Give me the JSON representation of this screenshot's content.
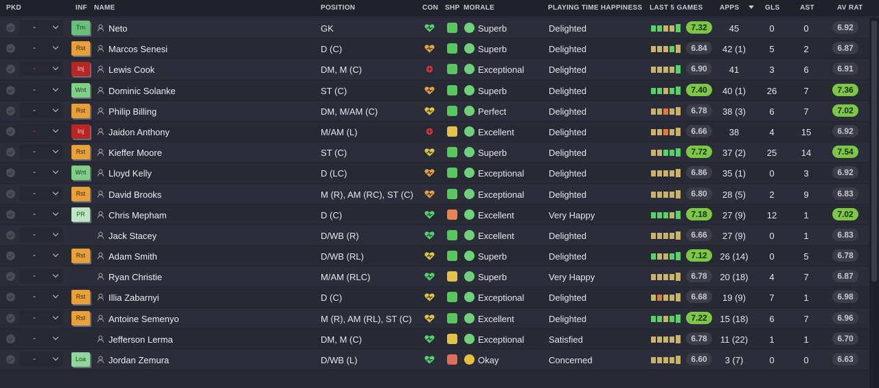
{
  "headers": {
    "pkd": "PKD",
    "inf": "INF",
    "name": "NAME",
    "position": "POSITION",
    "con": "CON",
    "shp": "SHP",
    "morale": "MORALE",
    "pth": "PLAYING TIME HAPPINESS",
    "last5": "LAST 5 GAMES",
    "apps": "APPS",
    "gls": "GLS",
    "ast": "AST",
    "avrat": "AV RAT"
  },
  "colors": {
    "rating_high": "#7cc744",
    "rating_low": "#3b3d49",
    "injury": "#b72525",
    "rest": "#e8a13a",
    "background": "#222430"
  },
  "players": [
    {
      "sel": "-",
      "inf": "Trn",
      "infType": "trn",
      "name": "Neto",
      "position": "GK",
      "con": "green",
      "shp": "green",
      "morIcon": "green",
      "morale": "Superb",
      "pth": "Delighted",
      "form": [
        "g",
        "g",
        "y",
        "y",
        "g"
      ],
      "last5": "7.32",
      "last5Hi": true,
      "apps": "45",
      "gls": "0",
      "ast": "0",
      "avr": "6.92",
      "avrHi": false
    },
    {
      "sel": "-",
      "inf": "Rst",
      "infType": "rst",
      "name": "Marcos Senesi",
      "position": "D (C)",
      "con": "orange",
      "shp": "green",
      "morIcon": "green",
      "morale": "Superb",
      "pth": "Delighted",
      "form": [
        "y",
        "y",
        "y",
        "g",
        "y"
      ],
      "last5": "6.84",
      "last5Hi": false,
      "apps": "42 (1)",
      "gls": "5",
      "ast": "2",
      "avr": "6.87",
      "avrHi": false
    },
    {
      "sel": "-",
      "selRed": true,
      "inf": "Inj",
      "infType": "inj",
      "name": "Lewis Cook",
      "position": "DM, M (C)",
      "con": "red",
      "shp": "green",
      "morIcon": "green",
      "morale": "Exceptional",
      "pth": "Delighted",
      "form": [
        "y",
        "y",
        "y",
        "y",
        "g"
      ],
      "last5": "6.90",
      "last5Hi": false,
      "apps": "41",
      "gls": "3",
      "ast": "6",
      "avr": "6.91",
      "avrHi": false
    },
    {
      "sel": "-",
      "inf": "Wnt",
      "infType": "wnt",
      "name": "Dominic Solanke",
      "position": "ST (C)",
      "con": "orange",
      "shp": "green",
      "morIcon": "green",
      "morale": "Superb",
      "pth": "Delighted",
      "form": [
        "g",
        "g",
        "y",
        "g",
        "g"
      ],
      "last5": "7.40",
      "last5Hi": true,
      "apps": "40 (1)",
      "gls": "26",
      "ast": "7",
      "avr": "7.36",
      "avrHi": true
    },
    {
      "sel": "-",
      "inf": "Rst",
      "infType": "rst",
      "name": "Philip Billing",
      "position": "DM, M/AM (C)",
      "con": "yellow",
      "shp": "green",
      "morIcon": "green",
      "morale": "Perfect",
      "pth": "Delighted",
      "form": [
        "y",
        "y",
        "o",
        "y",
        "y"
      ],
      "last5": "6.78",
      "last5Hi": false,
      "apps": "38 (3)",
      "gls": "6",
      "ast": "7",
      "avr": "7.02",
      "avrHi": true
    },
    {
      "sel": "-",
      "selRed": true,
      "inf": "Inj",
      "infType": "inj",
      "name": "Jaidon Anthony",
      "position": "M/AM (L)",
      "con": "red",
      "shp": "yellow",
      "morIcon": "green",
      "morale": "Excellent",
      "pth": "Delighted",
      "form": [
        "y",
        "y",
        "o",
        "y",
        "y"
      ],
      "last5": "6.66",
      "last5Hi": false,
      "apps": "38",
      "gls": "4",
      "ast": "15",
      "avr": "6.92",
      "avrHi": false
    },
    {
      "sel": "-",
      "inf": "Rst",
      "infType": "rst",
      "name": "Kieffer Moore",
      "position": "ST (C)",
      "con": "yellow",
      "shp": "green",
      "morIcon": "green",
      "morale": "Superb",
      "pth": "Delighted",
      "form": [
        "y",
        "y",
        "g",
        "g",
        "g"
      ],
      "last5": "7.72",
      "last5Hi": true,
      "apps": "37 (2)",
      "gls": "25",
      "ast": "14",
      "avr": "7.54",
      "avrHi": true
    },
    {
      "sel": "-",
      "inf": "Wnt",
      "infType": "wnt",
      "name": "Lloyd Kelly",
      "position": "D (LC)",
      "con": "orange",
      "shp": "green",
      "morIcon": "green",
      "morale": "Exceptional",
      "pth": "Delighted",
      "form": [
        "y",
        "y",
        "y",
        "y",
        "y"
      ],
      "last5": "6.86",
      "last5Hi": false,
      "apps": "35 (1)",
      "gls": "0",
      "ast": "3",
      "avr": "6.92",
      "avrHi": false
    },
    {
      "sel": "-",
      "inf": "Rst",
      "infType": "rst",
      "name": "David Brooks",
      "position": "M (R), AM (RC), ST (C)",
      "con": "orange",
      "shp": "green",
      "morIcon": "green",
      "morale": "Exceptional",
      "pth": "Delighted",
      "form": [
        "y",
        "y",
        "y",
        "y",
        "y"
      ],
      "last5": "6.80",
      "last5Hi": false,
      "apps": "28 (5)",
      "gls": "2",
      "ast": "9",
      "avr": "6.83",
      "avrHi": false
    },
    {
      "sel": "-",
      "inf": "PR",
      "infType": "pr",
      "name": "Chris Mepham",
      "position": "D (C)",
      "con": "green",
      "shp": "orange",
      "morIcon": "green",
      "morale": "Excellent",
      "pth": "Very Happy",
      "form": [
        "g",
        "g",
        "g",
        "y",
        "g"
      ],
      "last5": "7.18",
      "last5Hi": true,
      "apps": "27 (9)",
      "gls": "12",
      "ast": "1",
      "avr": "7.02",
      "avrHi": true
    },
    {
      "sel": "-",
      "inf": "",
      "infType": "",
      "name": "Jack Stacey",
      "position": "D/WB (R)",
      "con": "green",
      "shp": "green",
      "morIcon": "green",
      "morale": "Excellent",
      "pth": "Delighted",
      "form": [
        "y",
        "y",
        "y",
        "y",
        "y"
      ],
      "last5": "6.66",
      "last5Hi": false,
      "apps": "27 (9)",
      "gls": "0",
      "ast": "1",
      "avr": "6.83",
      "avrHi": false
    },
    {
      "sel": "-",
      "inf": "Rst",
      "infType": "rst",
      "name": "Adam Smith",
      "position": "D/WB (RL)",
      "con": "yellow",
      "shp": "green",
      "morIcon": "green",
      "morale": "Superb",
      "pth": "Delighted",
      "form": [
        "g",
        "y",
        "y",
        "g",
        "g"
      ],
      "last5": "7.12",
      "last5Hi": true,
      "apps": "26 (14)",
      "gls": "0",
      "ast": "5",
      "avr": "6.78",
      "avrHi": false
    },
    {
      "sel": "-",
      "inf": "",
      "infType": "",
      "name": "Ryan Christie",
      "position": "M/AM (RLC)",
      "con": "green",
      "shp": "yellow",
      "morIcon": "green",
      "morale": "Superb",
      "pth": "Very Happy",
      "form": [
        "y",
        "y",
        "y",
        "y",
        "y"
      ],
      "last5": "6.78",
      "last5Hi": false,
      "apps": "20 (18)",
      "gls": "4",
      "ast": "7",
      "avr": "6.87",
      "avrHi": false
    },
    {
      "sel": "-",
      "inf": "Rst",
      "infType": "rst",
      "name": "Illia Zabarnyi",
      "position": "D (C)",
      "con": "yellow",
      "shp": "green",
      "morIcon": "green",
      "morale": "Exceptional",
      "pth": "Delighted",
      "form": [
        "y",
        "o",
        "y",
        "y",
        "y"
      ],
      "last5": "6.68",
      "last5Hi": false,
      "apps": "19 (9)",
      "gls": "7",
      "ast": "1",
      "avr": "6.98",
      "avrHi": false
    },
    {
      "sel": "-",
      "inf": "Rst",
      "infType": "rst",
      "name": "Antoine Semenyo",
      "position": "M (R), AM (RL), ST (C)",
      "con": "yellow",
      "shp": "green",
      "morIcon": "green",
      "morale": "Excellent",
      "pth": "Delighted",
      "form": [
        "g",
        "g",
        "y",
        "g",
        "g"
      ],
      "last5": "7.22",
      "last5Hi": true,
      "apps": "15 (18)",
      "gls": "6",
      "ast": "7",
      "avr": "6.96",
      "avrHi": false
    },
    {
      "sel": "-",
      "inf": "",
      "infType": "",
      "name": "Jefferson Lerma",
      "position": "DM, M (C)",
      "con": "green",
      "shp": "yellow",
      "morIcon": "green",
      "morale": "Exceptional",
      "pth": "Satisfied",
      "form": [
        "y",
        "y",
        "y",
        "y",
        "y"
      ],
      "last5": "6.78",
      "last5Hi": false,
      "apps": "11 (22)",
      "gls": "1",
      "ast": "1",
      "avr": "6.70",
      "avrHi": false
    },
    {
      "sel": "-",
      "inf": "Loa",
      "infType": "loa",
      "name": "Jordan Zemura",
      "position": "D/WB (L)",
      "con": "green",
      "shp": "pinkred",
      "morIcon": "yellow",
      "morale": "Okay",
      "pth": "Concerned",
      "form": [
        "y",
        "y",
        "y",
        "y",
        "y"
      ],
      "last5": "6.60",
      "last5Hi": false,
      "apps": "3 (7)",
      "gls": "0",
      "ast": "0",
      "avr": "6.63",
      "avrHi": false
    }
  ]
}
